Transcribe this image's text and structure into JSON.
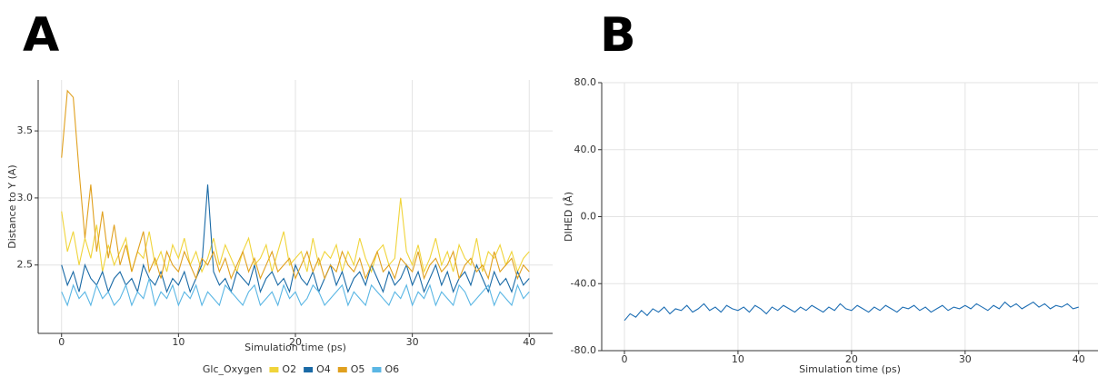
{
  "chart_data": [
    {
      "type": "line",
      "label": "A",
      "xlabel": "Simulation time (ps)",
      "ylabel": "Distance to Y (A)",
      "legend_title": "Glc_Oxygen",
      "xlim": [
        -2,
        42
      ],
      "ylim": [
        1.99,
        3.88
      ],
      "xticks": [
        0,
        10,
        20,
        30,
        40
      ],
      "yticks": [
        2.5,
        {
          "value": 3,
          "label": "3.0"
        },
        3.5
      ],
      "grid": true,
      "legend": "bottom",
      "x": [
        0,
        0.5,
        1,
        1.5,
        2,
        2.5,
        3,
        3.5,
        4,
        4.5,
        5,
        5.5,
        6,
        6.5,
        7,
        7.5,
        8,
        8.5,
        9,
        9.5,
        10,
        10.5,
        11,
        11.5,
        12,
        12.5,
        13,
        13.5,
        14,
        14.5,
        15,
        15.5,
        16,
        16.5,
        17,
        17.5,
        18,
        18.5,
        19,
        19.5,
        20,
        20.5,
        21,
        21.5,
        22,
        22.5,
        23,
        23.5,
        24,
        24.5,
        25,
        25.5,
        26,
        26.5,
        27,
        27.5,
        28,
        28.5,
        29,
        29.5,
        30,
        30.5,
        31,
        31.5,
        32,
        32.5,
        33,
        33.5,
        34,
        34.5,
        35,
        35.5,
        36,
        36.5,
        37,
        37.5,
        38,
        38.5,
        39,
        39.5,
        40
      ],
      "series": [
        {
          "name": "O2",
          "color": "#f0d43a",
          "values": [
            2.9,
            2.6,
            2.75,
            2.5,
            2.7,
            2.55,
            2.8,
            2.45,
            2.65,
            2.5,
            2.6,
            2.7,
            2.45,
            2.6,
            2.55,
            2.75,
            2.5,
            2.6,
            2.45,
            2.65,
            2.55,
            2.7,
            2.5,
            2.6,
            2.45,
            2.55,
            2.7,
            2.5,
            2.65,
            2.55,
            2.45,
            2.6,
            2.7,
            2.5,
            2.55,
            2.65,
            2.45,
            2.6,
            2.75,
            2.5,
            2.55,
            2.6,
            2.45,
            2.7,
            2.5,
            2.6,
            2.55,
            2.65,
            2.45,
            2.6,
            2.5,
            2.7,
            2.55,
            2.45,
            2.6,
            2.65,
            2.5,
            2.55,
            3.0,
            2.6,
            2.5,
            2.65,
            2.45,
            2.55,
            2.7,
            2.5,
            2.6,
            2.45,
            2.65,
            2.55,
            2.5,
            2.7,
            2.45,
            2.6,
            2.55,
            2.65,
            2.5,
            2.6,
            2.45,
            2.55,
            2.6
          ]
        },
        {
          "name": "O4",
          "color": "#1a6aa6",
          "values": [
            2.5,
            2.35,
            2.45,
            2.3,
            2.5,
            2.4,
            2.35,
            2.45,
            2.3,
            2.4,
            2.45,
            2.35,
            2.4,
            2.3,
            2.5,
            2.4,
            2.35,
            2.45,
            2.3,
            2.4,
            2.35,
            2.45,
            2.3,
            2.4,
            2.5,
            3.1,
            2.45,
            2.35,
            2.4,
            2.3,
            2.45,
            2.4,
            2.35,
            2.5,
            2.3,
            2.4,
            2.45,
            2.35,
            2.4,
            2.3,
            2.5,
            2.4,
            2.35,
            2.45,
            2.3,
            2.4,
            2.5,
            2.35,
            2.45,
            2.3,
            2.4,
            2.45,
            2.35,
            2.5,
            2.4,
            2.3,
            2.45,
            2.35,
            2.4,
            2.5,
            2.35,
            2.45,
            2.3,
            2.4,
            2.5,
            2.35,
            2.45,
            2.3,
            2.4,
            2.45,
            2.35,
            2.5,
            2.4,
            2.3,
            2.45,
            2.35,
            2.4,
            2.3,
            2.45,
            2.35,
            2.4
          ]
        },
        {
          "name": "O5",
          "color": "#e0a01e",
          "values": [
            3.3,
            3.8,
            3.75,
            3.2,
            2.7,
            3.1,
            2.6,
            2.9,
            2.55,
            2.8,
            2.5,
            2.65,
            2.45,
            2.6,
            2.75,
            2.45,
            2.55,
            2.4,
            2.6,
            2.5,
            2.45,
            2.6,
            2.5,
            2.4,
            2.55,
            2.5,
            2.6,
            2.45,
            2.55,
            2.4,
            2.5,
            2.6,
            2.45,
            2.55,
            2.4,
            2.5,
            2.6,
            2.45,
            2.5,
            2.55,
            2.4,
            2.5,
            2.6,
            2.45,
            2.55,
            2.4,
            2.5,
            2.45,
            2.6,
            2.5,
            2.45,
            2.55,
            2.4,
            2.5,
            2.6,
            2.45,
            2.5,
            2.4,
            2.55,
            2.5,
            2.45,
            2.6,
            2.4,
            2.5,
            2.55,
            2.45,
            2.5,
            2.6,
            2.4,
            2.5,
            2.55,
            2.45,
            2.5,
            2.4,
            2.6,
            2.45,
            2.5,
            2.55,
            2.4,
            2.5,
            2.45
          ]
        },
        {
          "name": "O6",
          "color": "#5ab6e4",
          "values": [
            2.3,
            2.2,
            2.35,
            2.25,
            2.3,
            2.2,
            2.35,
            2.25,
            2.3,
            2.2,
            2.25,
            2.35,
            2.2,
            2.3,
            2.25,
            2.4,
            2.2,
            2.3,
            2.25,
            2.35,
            2.2,
            2.3,
            2.25,
            2.35,
            2.2,
            2.3,
            2.25,
            2.2,
            2.35,
            2.3,
            2.25,
            2.2,
            2.3,
            2.35,
            2.2,
            2.25,
            2.3,
            2.2,
            2.35,
            2.25,
            2.3,
            2.2,
            2.25,
            2.35,
            2.3,
            2.2,
            2.25,
            2.3,
            2.35,
            2.2,
            2.3,
            2.25,
            2.2,
            2.35,
            2.3,
            2.25,
            2.2,
            2.3,
            2.25,
            2.35,
            2.2,
            2.3,
            2.25,
            2.35,
            2.2,
            2.3,
            2.25,
            2.2,
            2.35,
            2.3,
            2.2,
            2.25,
            2.3,
            2.35,
            2.2,
            2.3,
            2.25,
            2.2,
            2.35,
            2.25,
            2.3
          ]
        }
      ]
    },
    {
      "type": "line",
      "label": "B",
      "xlabel": "Simulation time (ps)",
      "ylabel": "DIHED (Å)",
      "xlim": [
        -2,
        41.7
      ],
      "ylim": [
        -80,
        80
      ],
      "xticks": [
        0,
        10,
        20,
        30,
        40
      ],
      "yticks": [
        {
          "value": 80,
          "label": "80.0"
        },
        {
          "value": 40,
          "label": "40.0"
        },
        {
          "value": 0,
          "label": "0.0"
        },
        {
          "value": -40,
          "label": "-40.0"
        },
        {
          "value": -80,
          "label": "-80.0"
        }
      ],
      "grid": true,
      "color": "#1f6fb4",
      "x": [
        0,
        0.5,
        1,
        1.5,
        2,
        2.5,
        3,
        3.5,
        4,
        4.5,
        5,
        5.5,
        6,
        6.5,
        7,
        7.5,
        8,
        8.5,
        9,
        9.5,
        10,
        10.5,
        11,
        11.5,
        12,
        12.5,
        13,
        13.5,
        14,
        14.5,
        15,
        15.5,
        16,
        16.5,
        17,
        17.5,
        18,
        18.5,
        19,
        19.5,
        20,
        20.5,
        21,
        21.5,
        22,
        22.5,
        23,
        23.5,
        24,
        24.5,
        25,
        25.5,
        26,
        26.5,
        27,
        27.5,
        28,
        28.5,
        29,
        29.5,
        30,
        30.5,
        31,
        31.5,
        32,
        32.5,
        33,
        33.5,
        34,
        34.5,
        35,
        35.5,
        36,
        36.5,
        37,
        37.5,
        38,
        38.5,
        39,
        39.5,
        40
      ],
      "values": [
        -62,
        -58,
        -60,
        -56,
        -59,
        -55,
        -57,
        -54,
        -58,
        -55,
        -56,
        -53,
        -57,
        -55,
        -52,
        -56,
        -54,
        -57,
        -53,
        -55,
        -56,
        -54,
        -57,
        -53,
        -55,
        -58,
        -54,
        -56,
        -53,
        -55,
        -57,
        -54,
        -56,
        -53,
        -55,
        -57,
        -54,
        -56,
        -52,
        -55,
        -56,
        -53,
        -55,
        -57,
        -54,
        -56,
        -53,
        -55,
        -57,
        -54,
        -55,
        -53,
        -56,
        -54,
        -57,
        -55,
        -53,
        -56,
        -54,
        -55,
        -53,
        -55,
        -52,
        -54,
        -56,
        -53,
        -55,
        -51,
        -54,
        -52,
        -55,
        -53,
        -51,
        -54,
        -52,
        -55,
        -53,
        -54,
        -52,
        -55,
        -54
      ]
    }
  ]
}
